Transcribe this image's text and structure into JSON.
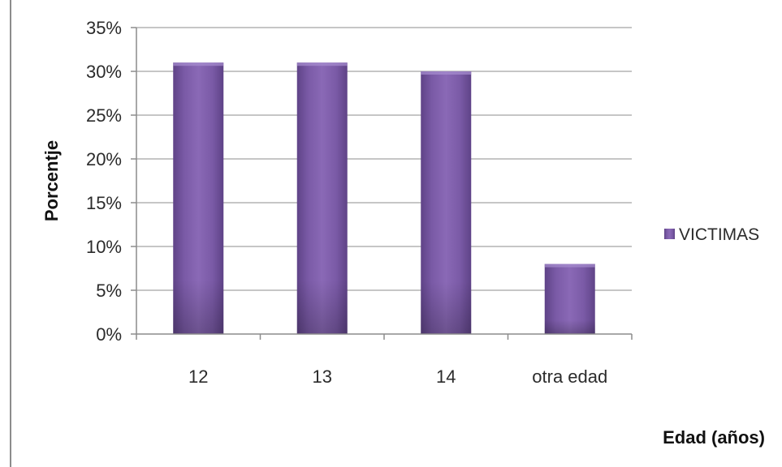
{
  "chart_data": {
    "type": "bar",
    "categories": [
      "12",
      "13",
      "14",
      "otra edad"
    ],
    "series": [
      {
        "name": "VICTIMAS",
        "values": [
          31,
          31,
          30,
          8
        ],
        "color": "#8060aa"
      }
    ],
    "xlabel": "Edad (años)",
    "ylabel": "Porcentje",
    "ylim": [
      0,
      35
    ],
    "yticks": [
      "0%",
      "5%",
      "10%",
      "15%",
      "20%",
      "25%",
      "30%",
      "35%"
    ],
    "ytick_values": [
      0,
      5,
      10,
      15,
      20,
      25,
      30,
      35
    ],
    "grid": true,
    "legend": "right"
  }
}
